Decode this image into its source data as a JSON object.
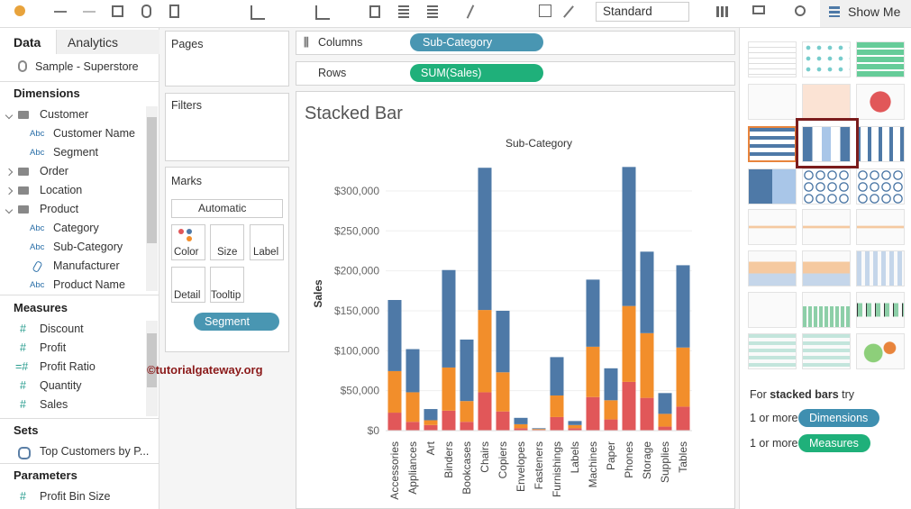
{
  "toolbar": {
    "view_size": "Standard",
    "show_me": "Show Me"
  },
  "data_pane": {
    "tabs": [
      "Data",
      "Analytics"
    ],
    "data_source": "Sample - Superstore",
    "dimensions_header": "Dimensions",
    "dimensions": [
      {
        "label": "Customer",
        "children": [
          {
            "icon": "Abc",
            "label": "Customer Name"
          },
          {
            "icon": "Abc",
            "label": "Segment"
          }
        ]
      },
      {
        "label": "Order"
      },
      {
        "label": "Location"
      },
      {
        "label": "Product",
        "children": [
          {
            "icon": "Abc",
            "label": "Category"
          },
          {
            "icon": "Abc",
            "label": "Sub-Category"
          },
          {
            "label": "Manufacturer"
          },
          {
            "icon": "Abc",
            "label": "Product Name"
          }
        ]
      }
    ],
    "measures_header": "Measures",
    "measures": [
      {
        "icon": "#",
        "label": "Discount"
      },
      {
        "icon": "#",
        "label": "Profit"
      },
      {
        "icon": "=#",
        "label": "Profit Ratio"
      },
      {
        "icon": "#",
        "label": "Quantity"
      },
      {
        "icon": "#",
        "label": "Sales"
      }
    ],
    "sets_header": "Sets",
    "sets": [
      "Top Customers by P..."
    ],
    "parameters_header": "Parameters",
    "parameters": [
      {
        "icon": "#",
        "label": "Profit Bin Size"
      }
    ]
  },
  "shelves": {
    "pages": "Pages",
    "columns_label": "Columns",
    "columns_pill": "Sub-Category",
    "rows_label": "Rows",
    "rows_pill": "SUM(Sales)",
    "filters": "Filters"
  },
  "marks": {
    "header": "Marks",
    "mark_type": "Automatic",
    "buttons": [
      "Color",
      "Size",
      "Label",
      "Detail",
      "Tooltip"
    ],
    "pill": "Segment"
  },
  "sheet": {
    "title": "Stacked Bar",
    "watermark": "©tutorialgateway.org"
  },
  "chart_data": {
    "type": "stacked_bar",
    "title": "Sub-Category",
    "y_label": "Sales",
    "categories": [
      "Accessories",
      "Appliances",
      "Art",
      "Binders",
      "Bookcases",
      "Chairs",
      "Copiers",
      "Envelopes",
      "Fasteners",
      "Furnishings",
      "Labels",
      "Machines",
      "Paper",
      "Phones",
      "Storage",
      "Supplies",
      "Tables"
    ],
    "series": [
      {
        "color": "#e15759",
        "values": [
          22500,
          11000,
          7000,
          25000,
          11000,
          48000,
          24000,
          3000,
          1000,
          17000,
          3000,
          42000,
          14000,
          61000,
          41000,
          5000,
          30000
        ]
      },
      {
        "color": "#f28e2b",
        "values": [
          52000,
          37000,
          6000,
          54000,
          26000,
          103000,
          49000,
          5000,
          1000,
          27000,
          4000,
          63000,
          24000,
          95000,
          81000,
          16000,
          74000
        ]
      },
      {
        "color": "#4e79a7",
        "values": [
          89000,
          54000,
          14000,
          122000,
          77000,
          178000,
          77000,
          8000,
          1000,
          48000,
          5000,
          84000,
          40000,
          174000,
          102000,
          26000,
          103000
        ]
      }
    ],
    "ylim": [
      0,
      350000
    ],
    "yticks": [
      {
        "value": 0,
        "label": "$0"
      },
      {
        "value": 50000,
        "label": "$50,000"
      },
      {
        "value": 100000,
        "label": "$100,000"
      },
      {
        "value": 150000,
        "label": "$150,000"
      },
      {
        "value": 200000,
        "label": "$200,000"
      },
      {
        "value": 250000,
        "label": "$250,000"
      },
      {
        "value": 300000,
        "label": "$300,000"
      }
    ],
    "grid": true
  },
  "show_me": {
    "hint_prefix": "For",
    "hint_bold": "stacked bars",
    "hint_suffix": "try",
    "requirements": [
      {
        "count": "1 or more",
        "field": "Dimensions"
      },
      {
        "count": "1 or more",
        "field": "Measures"
      }
    ]
  }
}
